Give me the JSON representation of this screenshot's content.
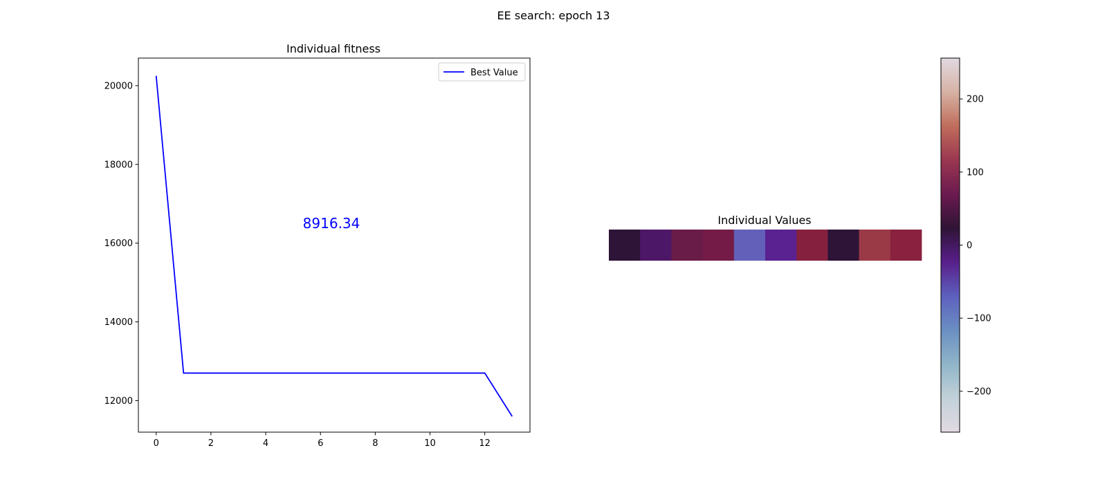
{
  "figure": {
    "suptitle": "EE search: epoch 13"
  },
  "chart_data": [
    {
      "type": "line",
      "title": "Individual fitness",
      "xlabel": "",
      "ylabel": "",
      "xlim": [
        -0.65,
        13.65
      ],
      "ylim": [
        11200,
        20700
      ],
      "xticks": [
        0,
        2,
        4,
        6,
        8,
        10,
        12
      ],
      "yticks": [
        12000,
        14000,
        16000,
        18000,
        20000
      ],
      "grid": false,
      "legend": {
        "position": "top-right",
        "entries": [
          "Best Value"
        ]
      },
      "series": [
        {
          "name": "Best Value",
          "color": "#0000ff",
          "x": [
            0,
            1,
            2,
            3,
            4,
            5,
            6,
            7,
            8,
            9,
            10,
            11,
            12,
            13
          ],
          "y": [
            20250,
            12700,
            12700,
            12700,
            12700,
            12700,
            12700,
            12700,
            12700,
            12700,
            12700,
            12700,
            12700,
            11600
          ]
        }
      ],
      "annotations": [
        {
          "text": "8916.34",
          "color": "#0000ff",
          "x": 6.4,
          "y": 16500
        }
      ]
    },
    {
      "type": "heatmap",
      "title": "Individual Values",
      "colormap": "twilight",
      "vmin": -256,
      "vmax": 256,
      "values": [
        [
          10,
          -40,
          60,
          80,
          -110,
          -65,
          100,
          10,
          140,
          110
        ]
      ],
      "colors": [
        "#2e1437",
        "#4d1768",
        "#6a1c48",
        "#741c47",
        "#6260b8",
        "#5a2190",
        "#85213f",
        "#2e1437",
        "#9b3a47",
        "#89213f"
      ],
      "colorbar": {
        "ticks": [
          -200,
          -100,
          0,
          100,
          200
        ],
        "gradient": [
          "#e2d9e2",
          "#c2d1d9",
          "#90b5c8",
          "#6b8fc2",
          "#5d60be",
          "#581f8a",
          "#2f1436",
          "#6b1a4f",
          "#9a3750",
          "#c06d5c",
          "#d6b2a4",
          "#e2d9e2"
        ]
      }
    }
  ]
}
